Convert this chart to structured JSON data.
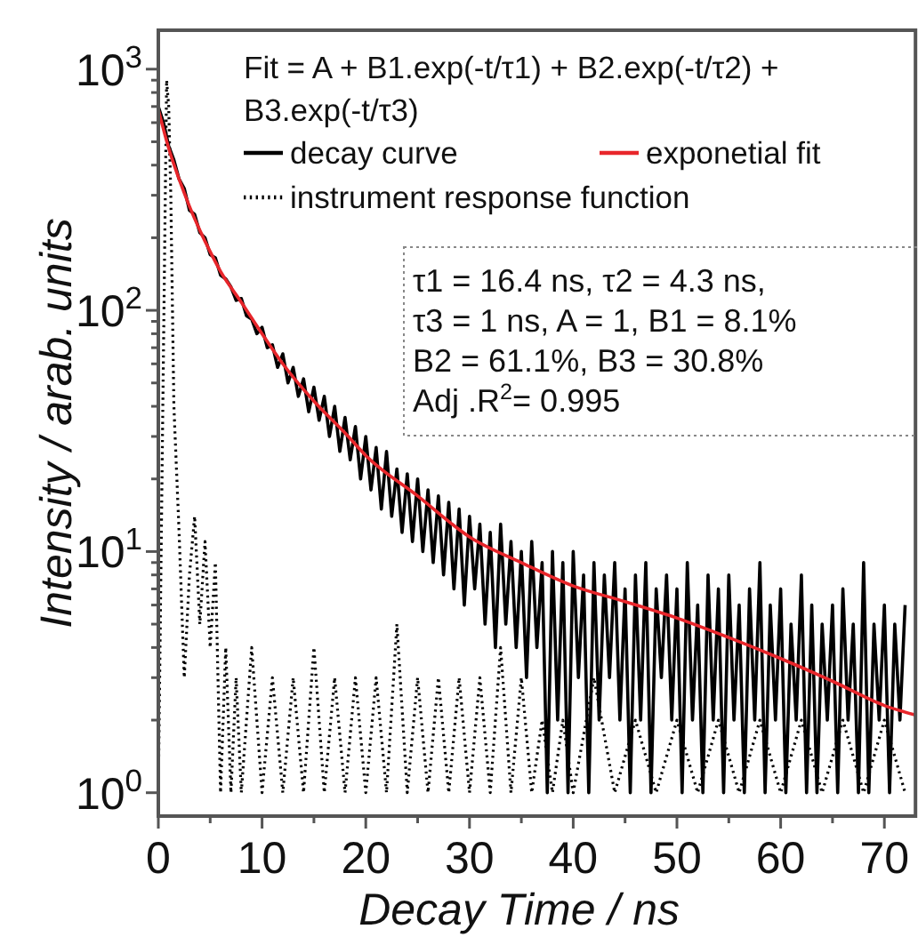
{
  "chart_data": {
    "type": "line",
    "xlabel": "Decay Time / ns",
    "ylabel": "Intensity / arab. units",
    "xlim": [
      0,
      73
    ],
    "ylim": [
      0.8,
      1450
    ],
    "log": "y",
    "xticks": [
      0,
      {
        "value": 5,
        "label": null
      },
      10,
      {
        "value": 15,
        "label": null
      },
      20,
      {
        "value": 25,
        "label": null
      },
      30,
      {
        "value": 35,
        "label": null
      },
      40,
      {
        "value": 45,
        "label": null
      },
      50,
      {
        "value": 55,
        "label": null
      },
      60,
      {
        "value": 65,
        "label": null
      },
      70
    ],
    "yticks": [
      {
        "value": 1,
        "label": "10$^{0}$"
      },
      {
        "value": 2,
        "label": null
      },
      {
        "value": 3,
        "label": null
      },
      {
        "value": 4,
        "label": null
      },
      {
        "value": 5,
        "label": null
      },
      {
        "value": 6,
        "label": null
      },
      {
        "value": 7,
        "label": null
      },
      {
        "value": 8,
        "label": null
      },
      {
        "value": 9,
        "label": null
      },
      {
        "value": 10,
        "label": "10$^{1}$"
      },
      {
        "value": 20,
        "label": null
      },
      {
        "value": 30,
        "label": null
      },
      {
        "value": 40,
        "label": null
      },
      {
        "value": 50,
        "label": null
      },
      {
        "value": 60,
        "label": null
      },
      {
        "value": 70,
        "label": null
      },
      {
        "value": 80,
        "label": null
      },
      {
        "value": 90,
        "label": null
      },
      {
        "value": 100,
        "label": "10$^{2}$"
      },
      {
        "value": 200,
        "label": null
      },
      {
        "value": 300,
        "label": null
      },
      {
        "value": 400,
        "label": null
      },
      {
        "value": 500,
        "label": null
      },
      {
        "value": 600,
        "label": null
      },
      {
        "value": 700,
        "label": null
      },
      {
        "value": 800,
        "label": null
      },
      {
        "value": 900,
        "label": null
      },
      {
        "value": 1000,
        "label": "10$^{3}$"
      }
    ],
    "grid": false,
    "legend": "top",
    "marker": "none",
    "annotations": [
      "Fit = A + B1.exp(-t/τ1) + B2.exp(-t/τ2) + B3.exp(-t/τ3)",
      "τ1 = 16.4 ns, τ2 = 4.3 ns,\nτ3 = 1 ns, A = 1, B1 = 8.1%\nB2 = 61.1%,  B3 = 30.8%\nAdj .R$^{2}$= 0.995"
    ],
    "series": [
      {
        "name": "decay curve",
        "color": "#000000",
        "line_style": "solid",
        "x": [
          0,
          0.5,
          1,
          1.5,
          2,
          2.5,
          3,
          3.5,
          4,
          4.5,
          5,
          5.5,
          6,
          6.5,
          7,
          7.5,
          8,
          8.5,
          9,
          9.5,
          10,
          10.5,
          11,
          11.5,
          12,
          12.5,
          13,
          13.5,
          14,
          14.5,
          15,
          15.5,
          16,
          16.5,
          17,
          17.5,
          18,
          18.5,
          19,
          19.5,
          20,
          20.5,
          21,
          21.5,
          22,
          22.5,
          23,
          23.5,
          24,
          24.5,
          25,
          25.5,
          26,
          26.5,
          27,
          27.5,
          28,
          28.5,
          29,
          29.5,
          30,
          30.5,
          31,
          31.5,
          32,
          32.5,
          33,
          33.5,
          34,
          34.5,
          35,
          35.5,
          36,
          36.5,
          37,
          37.5,
          38,
          38.5,
          39,
          39.5,
          40,
          40.5,
          41,
          41.5,
          42,
          42.5,
          43,
          43.5,
          44,
          44.5,
          45,
          45.5,
          46,
          46.5,
          47,
          47.5,
          48,
          48.5,
          49,
          49.5,
          50,
          50.5,
          51,
          51.5,
          52,
          52.5,
          53,
          53.5,
          54,
          54.5,
          55,
          55.5,
          56,
          56.5,
          57,
          57.5,
          58,
          58.5,
          59,
          59.5,
          60,
          60.5,
          61,
          61.5,
          62,
          62.5,
          63,
          63.5,
          64,
          64.5,
          65,
          65.5,
          66,
          66.5,
          67,
          67.5,
          68,
          68.5,
          69,
          69.5,
          70,
          70.5,
          71,
          71.5,
          72
        ],
        "values": [
          700,
          600,
          480,
          420,
          350,
          320,
          260,
          250,
          210,
          200,
          170,
          165,
          140,
          135,
          125,
          110,
          112,
          95,
          92,
          80,
          85,
          70,
          72,
          58,
          66,
          50,
          58,
          44,
          52,
          38,
          48,
          35,
          44,
          30,
          40,
          26,
          36,
          24,
          33,
          20,
          30,
          18,
          27,
          15,
          26,
          14,
          22,
          12,
          21,
          11,
          20,
          10,
          18,
          9,
          17,
          8,
          16,
          7,
          15,
          6,
          14,
          7,
          13,
          5,
          12,
          4,
          13,
          5,
          11,
          4,
          10,
          3,
          11,
          4,
          9,
          1,
          10,
          2,
          9,
          1,
          10,
          3,
          8,
          1,
          9,
          2,
          8,
          3,
          9,
          2,
          7,
          1,
          8,
          2,
          9,
          1,
          7,
          3,
          8,
          2,
          7,
          1,
          9,
          2,
          6,
          1,
          8,
          2,
          7,
          1,
          8,
          2,
          6,
          1,
          7,
          2,
          9,
          1,
          6,
          2,
          7,
          1,
          5,
          2,
          8,
          1,
          6,
          1,
          5,
          2,
          6,
          1,
          7,
          2,
          5,
          1,
          9,
          1,
          5,
          2,
          6,
          1,
          5,
          2,
          6
        ]
      },
      {
        "name": "exponetial fit",
        "color": "#e8262b",
        "line_style": "solid",
        "x": [
          0,
          1,
          2,
          3,
          4,
          5,
          6,
          8,
          10,
          12,
          15,
          18,
          20,
          25,
          30,
          35,
          40,
          45,
          50,
          55,
          60,
          65,
          70,
          73
        ],
        "values": [
          680,
          470,
          350,
          270,
          215,
          175,
          145,
          108,
          80,
          60,
          42,
          31,
          25,
          17,
          11.5,
          9,
          7.2,
          6.2,
          5.3,
          4.4,
          3.6,
          2.9,
          2.3,
          2.1
        ]
      },
      {
        "name": "instrument response function",
        "color": "#000000",
        "line_style": "dotted",
        "x": [
          0,
          0.8,
          1,
          1.2,
          1.5,
          2,
          2.5,
          3,
          3.5,
          4,
          4.5,
          5,
          5.5,
          6,
          6.5,
          7,
          7.5,
          8,
          9,
          10,
          11,
          12,
          13,
          14,
          15,
          16,
          17,
          18,
          19,
          20,
          21,
          22,
          23,
          24,
          25,
          26,
          27,
          28,
          29,
          30,
          31,
          32,
          33,
          34,
          35,
          36,
          37,
          38,
          39,
          40,
          42,
          44,
          46,
          48,
          50,
          52,
          54,
          56,
          58,
          60,
          62,
          64,
          66,
          68,
          70,
          72
        ],
        "values": [
          1,
          900,
          700,
          300,
          40,
          12,
          3,
          8,
          14,
          5,
          11,
          4,
          9,
          1,
          4,
          1,
          3,
          1,
          4,
          1,
          3,
          1,
          3,
          1,
          4,
          1,
          3,
          1,
          3,
          1,
          3,
          1,
          5,
          1,
          3,
          1,
          3,
          1,
          3,
          1,
          3,
          1,
          4,
          1,
          3,
          1,
          2,
          1,
          2,
          1,
          3,
          1,
          2,
          1,
          2,
          1,
          2,
          1,
          2,
          1,
          2,
          1,
          2,
          1,
          2,
          1
        ]
      }
    ]
  }
}
